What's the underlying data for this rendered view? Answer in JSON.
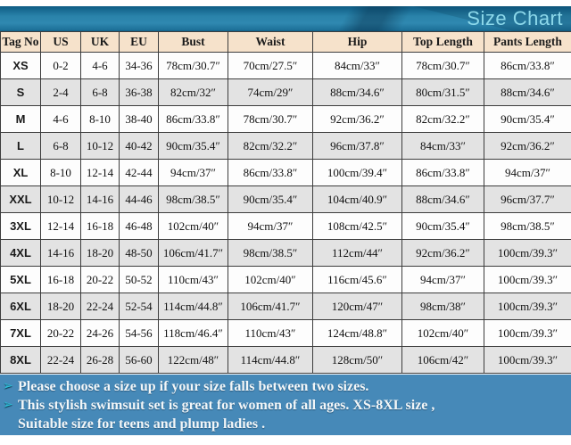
{
  "banner": {
    "title": "Size Chart"
  },
  "table": {
    "columns": [
      "Tag No",
      "US",
      "UK",
      "EU",
      "Bust",
      "Waist",
      "Hip",
      "Top Length",
      "Pants Length"
    ],
    "rows": [
      [
        "XS",
        "0-2",
        "4-6",
        "34-36",
        "78cm/30.7″",
        "70cm/27.5″",
        "84cm/33″",
        "78cm/30.7″",
        "86cm/33.8″"
      ],
      [
        "S",
        "2-4",
        "6-8",
        "36-38",
        "82cm/32″",
        "74cm/29″",
        "88cm/34.6″",
        "80cm/31.5″",
        "88cm/34.6″"
      ],
      [
        "M",
        "4-6",
        "8-10",
        "38-40",
        "86cm/33.8″",
        "78cm/30.7″",
        "92cm/36.2″",
        "82cm/32.2″",
        "90cm/35.4″"
      ],
      [
        "L",
        "6-8",
        "10-12",
        "40-42",
        "90cm/35.4″",
        "82cm/32.2″",
        "96cm/37.8″",
        "84cm/33″",
        "92cm/36.2″"
      ],
      [
        "XL",
        "8-10",
        "12-14",
        "42-44",
        "94cm/37″",
        "86cm/33.8″",
        "100cm/39.4″",
        "86cm/33.8″",
        "94cm/37″"
      ],
      [
        "XXL",
        "10-12",
        "14-16",
        "44-46",
        "98cm/38.5″",
        "90cm/35.4″",
        "104cm/40.9″",
        "88cm/34.6″",
        "96cm/37.7″"
      ],
      [
        "3XL",
        "12-14",
        "16-18",
        "46-48",
        "102cm/40″",
        "94cm/37″",
        "108cm/42.5″",
        "90cm/35.4″",
        "98cm/38.5″"
      ],
      [
        "4XL",
        "14-16",
        "18-20",
        "48-50",
        "106cm/41.7″",
        "98cm/38.5″",
        "112cm/44″",
        "92cm/36.2″",
        "100cm/39.3″"
      ],
      [
        "5XL",
        "16-18",
        "20-22",
        "50-52",
        "110cm/43″",
        "102cm/40″",
        "116cm/45.6″",
        "94cm/37″",
        "100cm/39.3″"
      ],
      [
        "6XL",
        "18-20",
        "22-24",
        "52-54",
        "114cm/44.8″",
        "106cm/41.7″",
        "120cm/47″",
        "98cm/38″",
        "100cm/39.3″"
      ],
      [
        "7XL",
        "20-22",
        "24-26",
        "54-56",
        "118cm/46.4″",
        "110cm/43″",
        "124cm/48.8″",
        "102cm/40″",
        "100cm/39.3″"
      ],
      [
        "8XL",
        "22-24",
        "26-28",
        "56-60",
        "122cm/48″",
        "114cm/44.8″",
        "128cm/50″",
        "106cm/42″",
        "100cm/39.3″"
      ]
    ]
  },
  "notes": [
    {
      "bullet": "➢",
      "text": "Please choose a size up if your size falls between two sizes."
    },
    {
      "bullet": "➢",
      "text": "This stylish swimsuit set is great for women of all ages. XS-8XL size ,"
    },
    {
      "bullet": "",
      "text": "Suitable size for teens and plump ladies ."
    }
  ],
  "colors": {
    "banner_gradient_top": "#0e5c84",
    "banner_gradient_mid": "#2f88b0",
    "banner_title_text": "#8cd8ea",
    "header_row_bg": "#f6e2cb",
    "stripe_row_bg": "#e3e3e3",
    "table_border": "#3d3d3d",
    "notes_bg": "#4689b8",
    "notes_text": "#f2f6f8",
    "bullet_accent": "#2cc0d8"
  }
}
